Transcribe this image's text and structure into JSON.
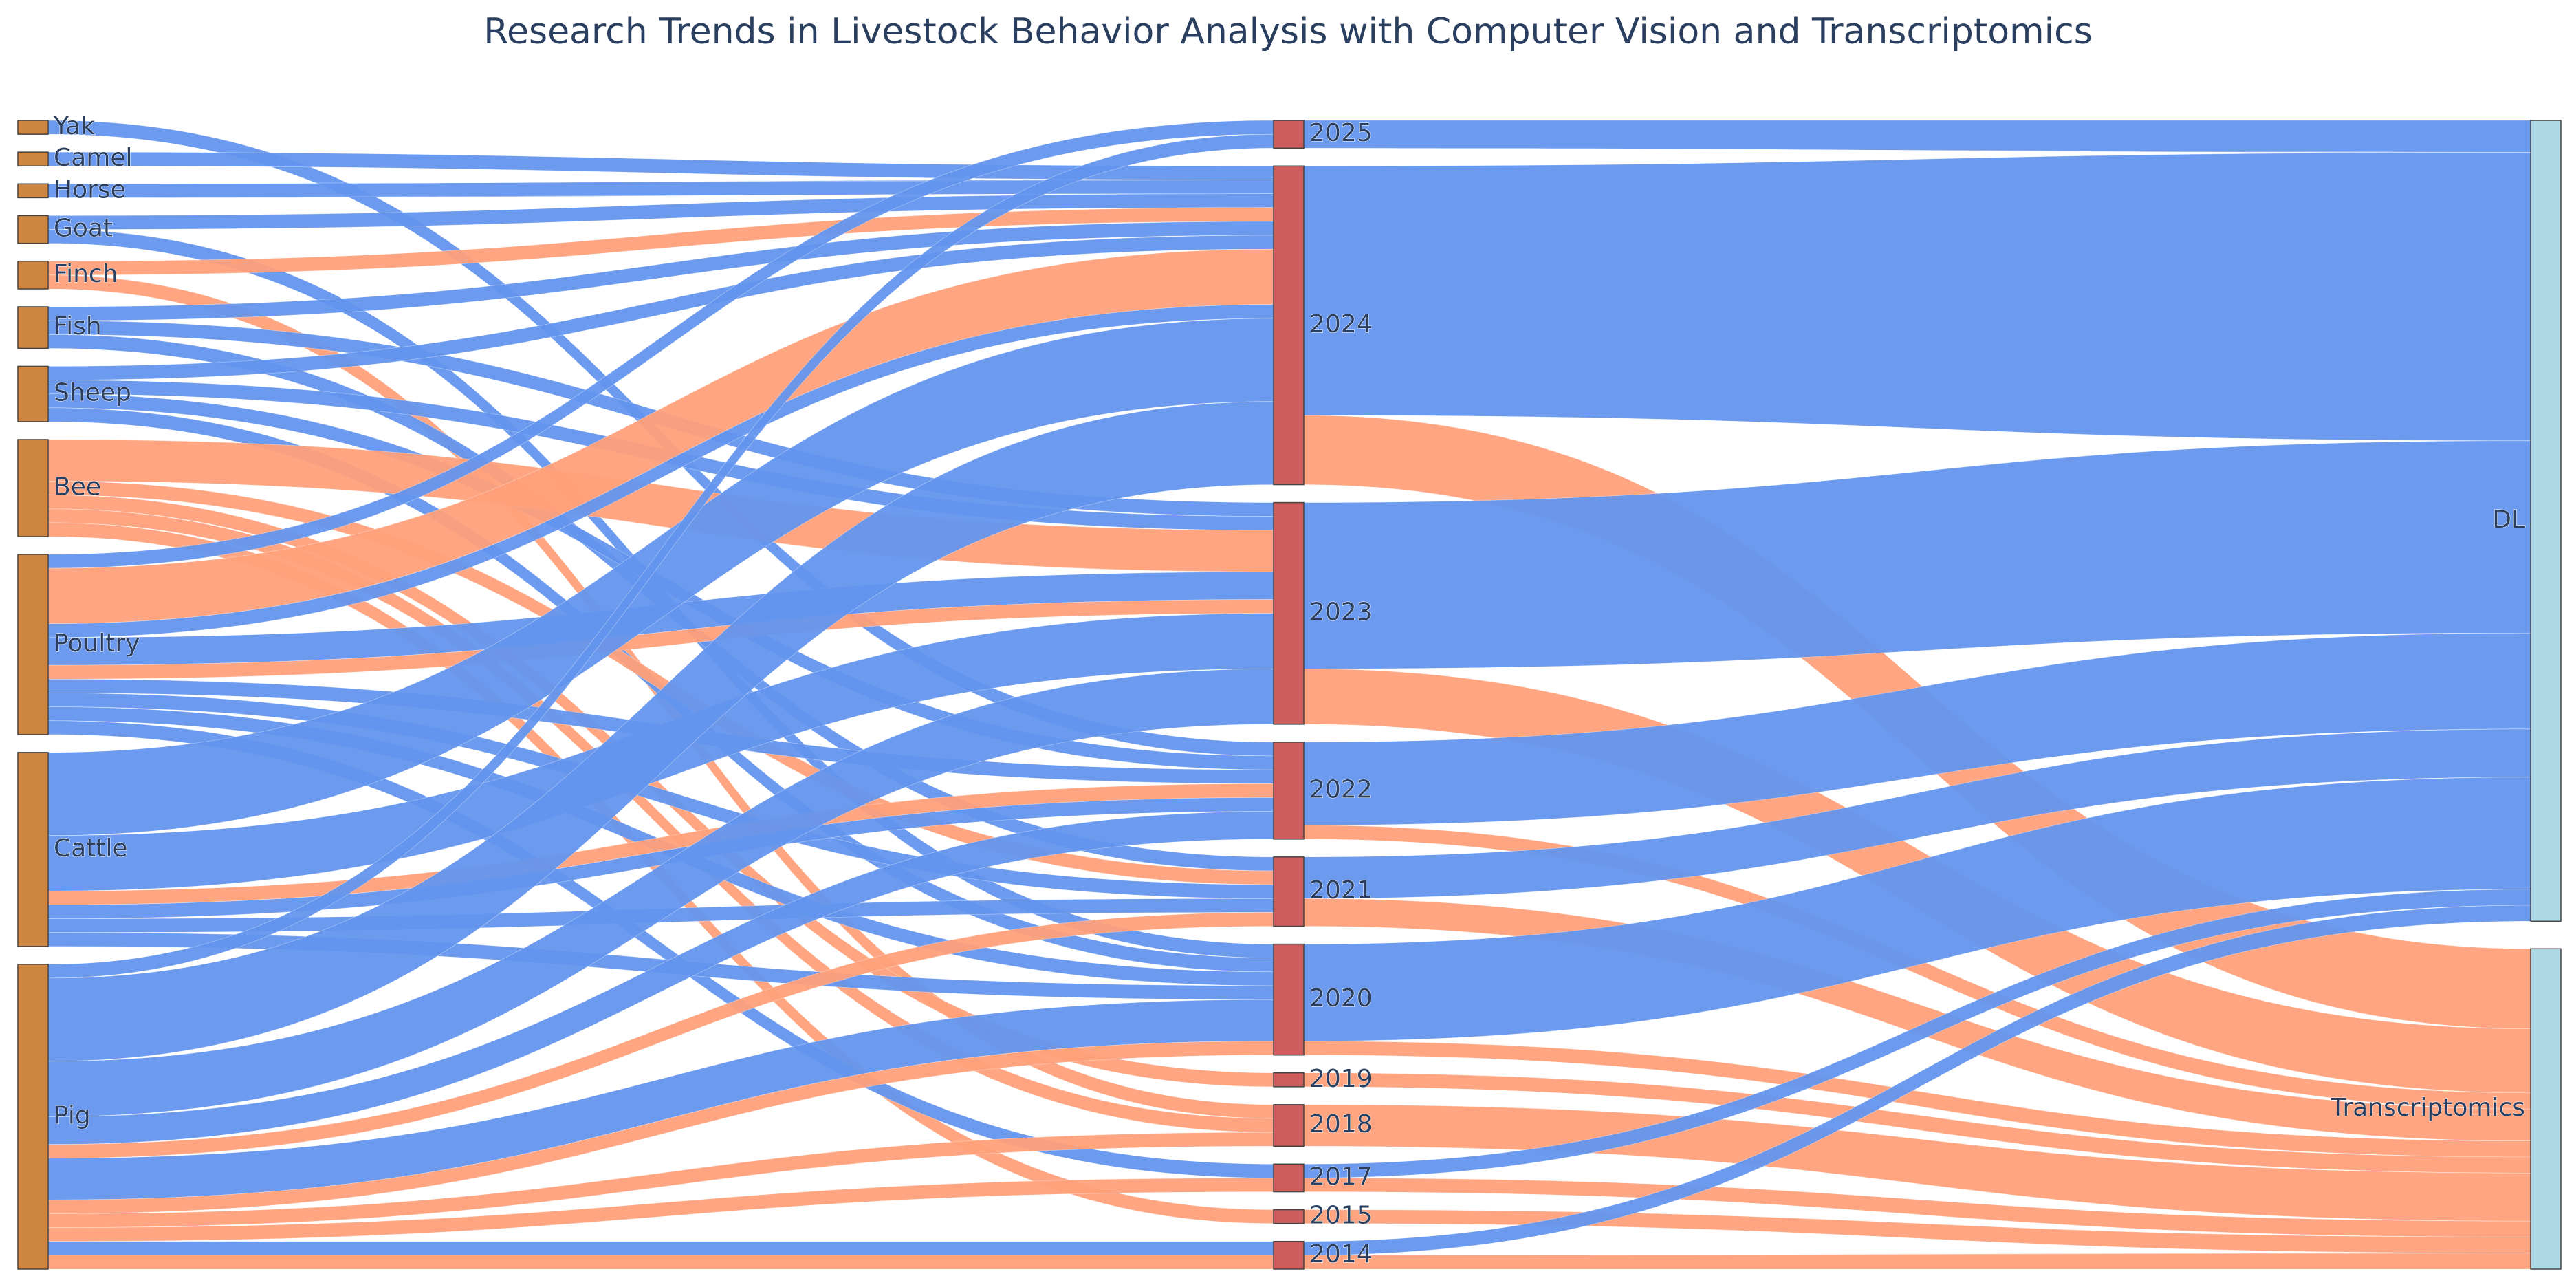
{
  "chart_data": {
    "type": "sankey",
    "title": "Research Trends in Livestock Behavior Analysis with Computer Vision and Transcriptomics",
    "colors": {
      "species_node": "#cd853f",
      "year_node": "#cd5c5c",
      "method_node": "#add8e6",
      "dl_link": "#6495ed",
      "transcriptomics_link": "#ffa07a"
    },
    "nodes": {
      "species": [
        "Yak",
        "Camel",
        "Horse",
        "Goat",
        "Finch",
        "Fish",
        "Sheep",
        "Bee",
        "Poultry",
        "Cattle",
        "Pig"
      ],
      "years": [
        "2025",
        "2024",
        "2023",
        "2022",
        "2021",
        "2020",
        "2019",
        "2018",
        "2017",
        "2015",
        "2014"
      ],
      "methods": [
        "DL",
        "Transcriptomics"
      ]
    },
    "links": [
      {
        "source": "Yak",
        "target": "2022",
        "method": "DL",
        "value": 1
      },
      {
        "source": "Camel",
        "target": "2024",
        "method": "DL",
        "value": 1
      },
      {
        "source": "Horse",
        "target": "2024",
        "method": "DL",
        "value": 1
      },
      {
        "source": "Goat",
        "target": "2024",
        "method": "DL",
        "value": 1
      },
      {
        "source": "Goat",
        "target": "2020",
        "method": "DL",
        "value": 1
      },
      {
        "source": "Finch",
        "target": "2024",
        "method": "Transcriptomics",
        "value": 1
      },
      {
        "source": "Finch",
        "target": "2018",
        "method": "Transcriptomics",
        "value": 1
      },
      {
        "source": "Fish",
        "target": "2024",
        "method": "DL",
        "value": 1
      },
      {
        "source": "Fish",
        "target": "2023",
        "method": "DL",
        "value": 1
      },
      {
        "source": "Fish",
        "target": "2021",
        "method": "DL",
        "value": 1
      },
      {
        "source": "Sheep",
        "target": "2024",
        "method": "DL",
        "value": 1
      },
      {
        "source": "Sheep",
        "target": "2023",
        "method": "DL",
        "value": 1
      },
      {
        "source": "Sheep",
        "target": "2022",
        "method": "DL",
        "value": 1
      },
      {
        "source": "Sheep",
        "target": "2020",
        "method": "DL",
        "value": 1
      },
      {
        "source": "Bee",
        "target": "2023",
        "method": "Transcriptomics",
        "value": 3
      },
      {
        "source": "Bee",
        "target": "2021",
        "method": "Transcriptomics",
        "value": 1
      },
      {
        "source": "Bee",
        "target": "2019",
        "method": "Transcriptomics",
        "value": 1
      },
      {
        "source": "Bee",
        "target": "2018",
        "method": "Transcriptomics",
        "value": 1
      },
      {
        "source": "Bee",
        "target": "2015",
        "method": "Transcriptomics",
        "value": 1
      },
      {
        "source": "Poultry",
        "target": "2025",
        "method": "DL",
        "value": 1
      },
      {
        "source": "Poultry",
        "target": "2024",
        "method": "Transcriptomics",
        "value": 4
      },
      {
        "source": "Poultry",
        "target": "2024",
        "method": "DL",
        "value": 1
      },
      {
        "source": "Poultry",
        "target": "2023",
        "method": "DL",
        "value": 2
      },
      {
        "source": "Poultry",
        "target": "2023",
        "method": "Transcriptomics",
        "value": 1
      },
      {
        "source": "Poultry",
        "target": "2022",
        "method": "DL",
        "value": 1
      },
      {
        "source": "Poultry",
        "target": "2021",
        "method": "DL",
        "value": 1
      },
      {
        "source": "Poultry",
        "target": "2020",
        "method": "DL",
        "value": 1
      },
      {
        "source": "Poultry",
        "target": "2017",
        "method": "DL",
        "value": 1
      },
      {
        "source": "Cattle",
        "target": "2024",
        "method": "DL",
        "value": 6
      },
      {
        "source": "Cattle",
        "target": "2023",
        "method": "DL",
        "value": 4
      },
      {
        "source": "Cattle",
        "target": "2022",
        "method": "Transcriptomics",
        "value": 1
      },
      {
        "source": "Cattle",
        "target": "2022",
        "method": "DL",
        "value": 1
      },
      {
        "source": "Cattle",
        "target": "2021",
        "method": "DL",
        "value": 1
      },
      {
        "source": "Cattle",
        "target": "2020",
        "method": "DL",
        "value": 1
      },
      {
        "source": "Pig",
        "target": "2025",
        "method": "DL",
        "value": 1
      },
      {
        "source": "Pig",
        "target": "2024",
        "method": "DL",
        "value": 6
      },
      {
        "source": "Pig",
        "target": "2023",
        "method": "DL",
        "value": 4
      },
      {
        "source": "Pig",
        "target": "2022",
        "method": "DL",
        "value": 2
      },
      {
        "source": "Pig",
        "target": "2021",
        "method": "Transcriptomics",
        "value": 1
      },
      {
        "source": "Pig",
        "target": "2020",
        "method": "DL",
        "value": 3
      },
      {
        "source": "Pig",
        "target": "2020",
        "method": "Transcriptomics",
        "value": 1
      },
      {
        "source": "Pig",
        "target": "2018",
        "method": "Transcriptomics",
        "value": 1
      },
      {
        "source": "Pig",
        "target": "2017",
        "method": "Transcriptomics",
        "value": 1
      },
      {
        "source": "Pig",
        "target": "2014",
        "method": "DL",
        "value": 1
      },
      {
        "source": "Pig",
        "target": "2014",
        "method": "Transcriptomics",
        "value": 1
      }
    ]
  }
}
